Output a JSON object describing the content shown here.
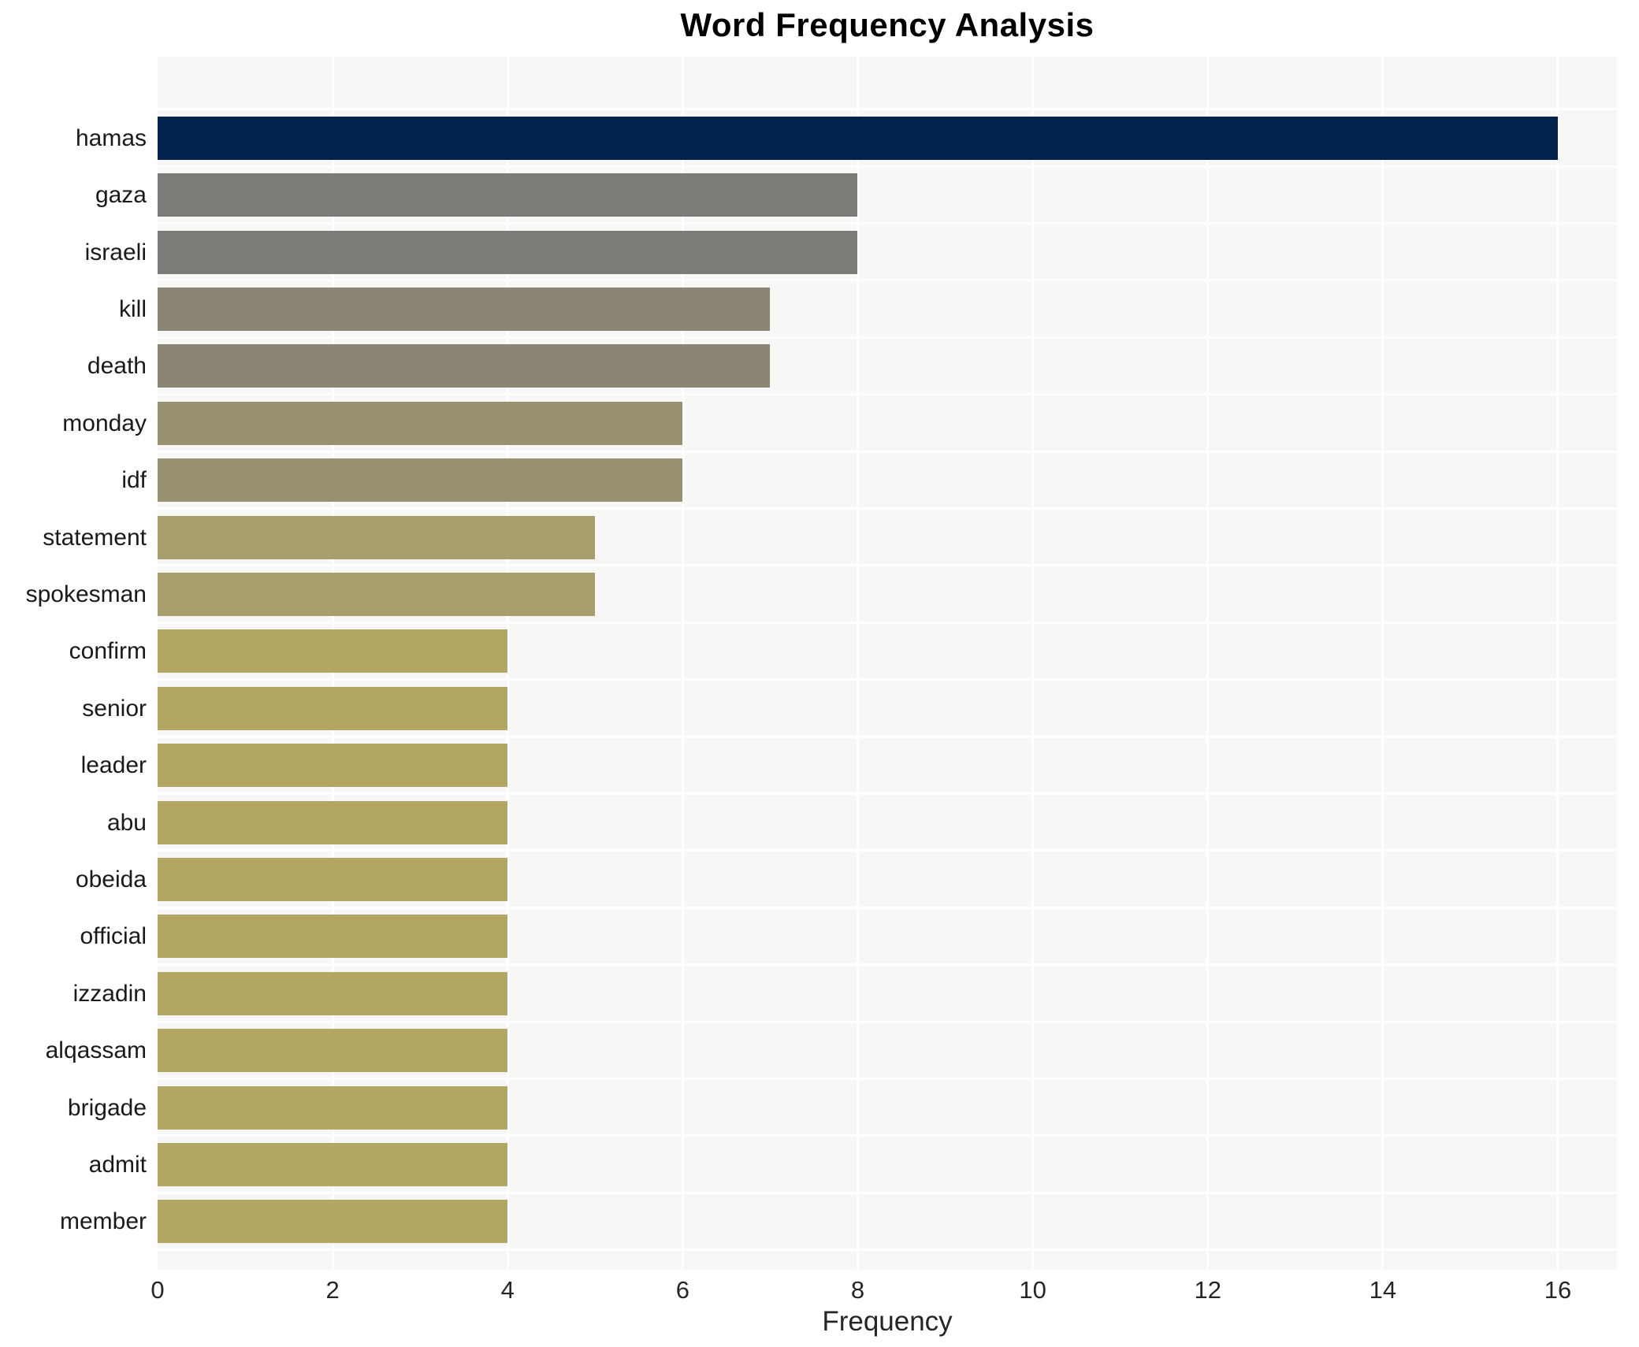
{
  "chart_data": {
    "type": "bar",
    "orientation": "horizontal",
    "title": "Word Frequency Analysis",
    "xlabel": "Frequency",
    "ylabel": "",
    "categories": [
      "hamas",
      "gaza",
      "israeli",
      "kill",
      "death",
      "monday",
      "idf",
      "statement",
      "spokesman",
      "confirm",
      "senior",
      "leader",
      "abu",
      "obeida",
      "official",
      "izzadin",
      "alqassam",
      "brigade",
      "admit",
      "member"
    ],
    "values": [
      16,
      8,
      8,
      7,
      7,
      6,
      6,
      5,
      5,
      4,
      4,
      4,
      4,
      4,
      4,
      4,
      4,
      4,
      4,
      4
    ],
    "bar_colors": [
      "#02234c",
      "#7b7b78",
      "#7b7b78",
      "#8a8574",
      "#8a8574",
      "#999070",
      "#999070",
      "#a89d6d",
      "#a89d6d",
      "#b4a763",
      "#b4a763",
      "#b4a763",
      "#b4a763",
      "#b4a763",
      "#b4a763",
      "#b4a763",
      "#b4a763",
      "#b4a763",
      "#b4a763",
      "#b4a763"
    ],
    "x_ticks": [
      0,
      2,
      4,
      6,
      8,
      10,
      12,
      14,
      16
    ],
    "xlim": [
      0,
      16.7
    ],
    "grid": true,
    "legend": false,
    "plot_background": "#f7f7f5",
    "gridline_color": "#ffffff",
    "text_color": "#1a1a1a"
  }
}
